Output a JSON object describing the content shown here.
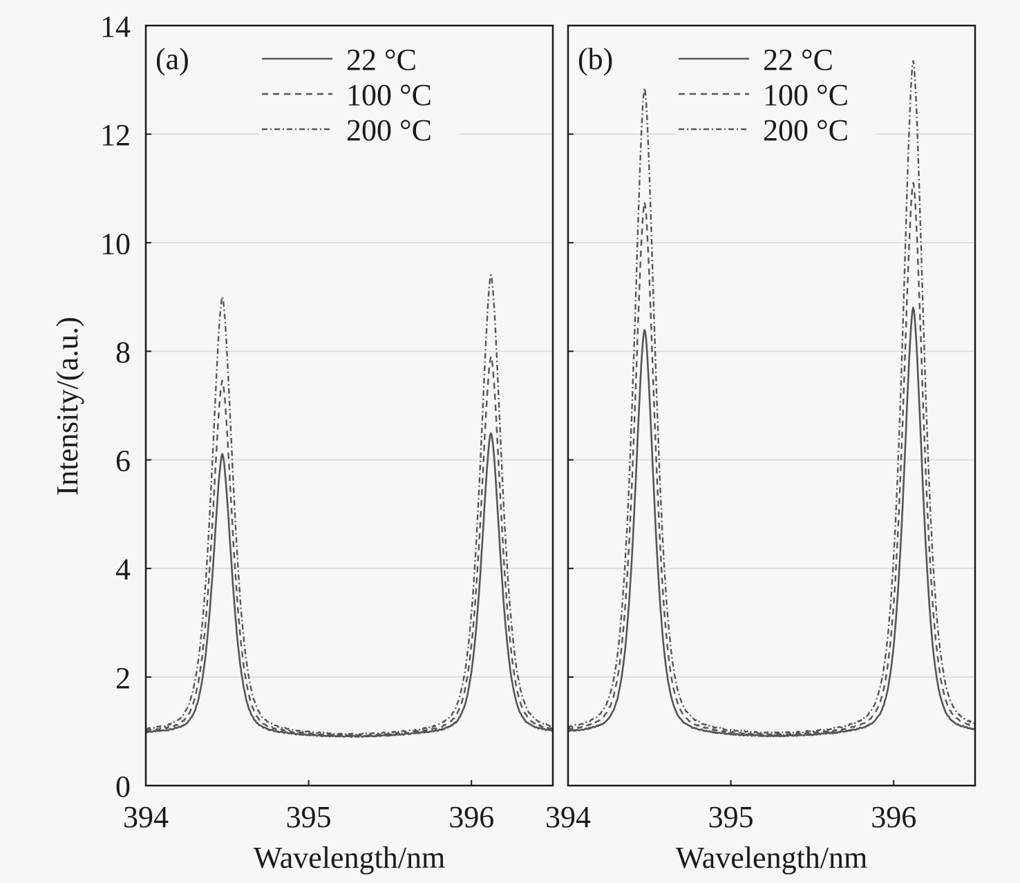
{
  "chart_data": [
    {
      "type": "line",
      "panel_label": "(a)",
      "xlabel": "Wavelength/nm",
      "ylabel": "Intensity/(a.u.)",
      "xlim": [
        394,
        396.5
      ],
      "ylim": [
        0,
        14
      ],
      "x_ticks": [
        394,
        395,
        396
      ],
      "y_ticks": [
        0,
        2,
        4,
        6,
        8,
        10,
        12,
        14
      ],
      "grid": "horizontal",
      "legend": "top-center",
      "baseline": 0.95,
      "peaks": [
        394.47,
        396.12
      ],
      "series": [
        {
          "name": "22 °C",
          "style": "solid",
          "peak_values": [
            6.1,
            6.5
          ]
        },
        {
          "name": "100 °C",
          "style": "dashed",
          "peak_values": [
            7.45,
            7.9
          ]
        },
        {
          "name": "200 °C",
          "style": "dash-dot",
          "peak_values": [
            9.0,
            9.4
          ]
        }
      ]
    },
    {
      "type": "line",
      "panel_label": "(b)",
      "xlabel": "Wavelength/nm",
      "ylabel": "",
      "xlim": [
        394,
        396.5
      ],
      "ylim": [
        0,
        14
      ],
      "x_ticks": [
        394,
        395,
        396
      ],
      "y_ticks": [
        0,
        2,
        4,
        6,
        8,
        10,
        12,
        14
      ],
      "grid": "horizontal",
      "legend": "top-center",
      "baseline": 0.95,
      "peaks": [
        394.47,
        396.12
      ],
      "series": [
        {
          "name": "22 °C",
          "style": "solid",
          "peak_values": [
            8.4,
            8.8
          ]
        },
        {
          "name": "100 °C",
          "style": "dashed",
          "peak_values": [
            10.75,
            11.1
          ]
        },
        {
          "name": "200 °C",
          "style": "dash-dot",
          "peak_values": [
            12.85,
            13.35
          ]
        }
      ]
    }
  ],
  "colors": {
    "line": "#555555",
    "axis": "#1a1a1a",
    "grid": "#dddddd",
    "background": "#f7f7f7"
  }
}
